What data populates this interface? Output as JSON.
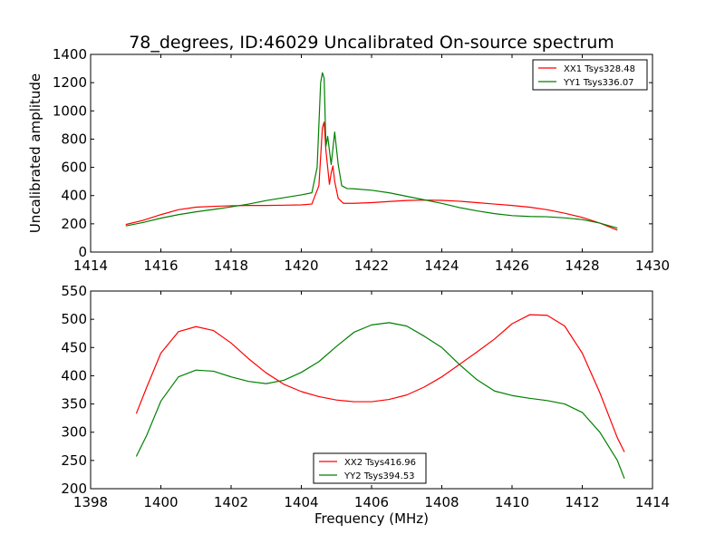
{
  "figure_title": "78_degrees, ID:46029 Uncalibrated On-source spectrum",
  "colors": {
    "xx": "#ff0000",
    "yy": "#008000"
  },
  "chart_data": [
    {
      "type": "line",
      "title": "78_degrees, ID:46029 Uncalibrated On-source spectrum",
      "xlabel": "",
      "ylabel": "Uncalibrated amplitude",
      "xlim": [
        1414,
        1430
      ],
      "ylim": [
        0,
        1400
      ],
      "xticks": [
        1414,
        1416,
        1418,
        1420,
        1422,
        1424,
        1426,
        1428,
        1430
      ],
      "yticks": [
        0,
        200,
        400,
        600,
        800,
        1000,
        1200,
        1400
      ],
      "legend_position": "top-right",
      "grid": false,
      "series": [
        {
          "name": "XX1 Tsys328.48",
          "color": "#ff0000",
          "points": [
            [
              1415.0,
              195
            ],
            [
              1415.5,
              225
            ],
            [
              1416.0,
              265
            ],
            [
              1416.5,
              300
            ],
            [
              1417.0,
              318
            ],
            [
              1417.5,
              324
            ],
            [
              1418.0,
              328
            ],
            [
              1418.5,
              330
            ],
            [
              1419.0,
              330
            ],
            [
              1419.5,
              332
            ],
            [
              1420.0,
              334
            ],
            [
              1420.3,
              340
            ],
            [
              1420.5,
              470
            ],
            [
              1420.6,
              880
            ],
            [
              1420.65,
              920
            ],
            [
              1420.7,
              720
            ],
            [
              1420.8,
              480
            ],
            [
              1420.85,
              560
            ],
            [
              1420.9,
              610
            ],
            [
              1420.95,
              500
            ],
            [
              1421.05,
              380
            ],
            [
              1421.2,
              345
            ],
            [
              1421.5,
              345
            ],
            [
              1422.0,
              350
            ],
            [
              1422.5,
              358
            ],
            [
              1423.0,
              365
            ],
            [
              1423.5,
              368
            ],
            [
              1424.0,
              366
            ],
            [
              1424.5,
              360
            ],
            [
              1425.0,
              350
            ],
            [
              1425.5,
              340
            ],
            [
              1426.0,
              330
            ],
            [
              1426.5,
              318
            ],
            [
              1427.0,
              300
            ],
            [
              1427.5,
              275
            ],
            [
              1428.0,
              245
            ],
            [
              1428.5,
              205
            ],
            [
              1429.0,
              155
            ]
          ]
        },
        {
          "name": "YY1 Tsys336.07",
          "color": "#008000",
          "points": [
            [
              1415.0,
              185
            ],
            [
              1415.5,
              210
            ],
            [
              1416.0,
              240
            ],
            [
              1416.5,
              265
            ],
            [
              1417.0,
              285
            ],
            [
              1417.5,
              302
            ],
            [
              1418.0,
              320
            ],
            [
              1418.5,
              340
            ],
            [
              1419.0,
              365
            ],
            [
              1419.5,
              385
            ],
            [
              1420.0,
              405
            ],
            [
              1420.3,
              420
            ],
            [
              1420.45,
              600
            ],
            [
              1420.55,
              1200
            ],
            [
              1420.6,
              1270
            ],
            [
              1420.65,
              1230
            ],
            [
              1420.7,
              750
            ],
            [
              1420.75,
              820
            ],
            [
              1420.85,
              620
            ],
            [
              1420.95,
              850
            ],
            [
              1421.05,
              620
            ],
            [
              1421.15,
              470
            ],
            [
              1421.3,
              450
            ],
            [
              1421.5,
              448
            ],
            [
              1422.0,
              438
            ],
            [
              1422.5,
              420
            ],
            [
              1423.0,
              395
            ],
            [
              1423.5,
              370
            ],
            [
              1424.0,
              345
            ],
            [
              1424.5,
              315
            ],
            [
              1425.0,
              292
            ],
            [
              1425.5,
              272
            ],
            [
              1426.0,
              258
            ],
            [
              1426.5,
              252
            ],
            [
              1427.0,
              250
            ],
            [
              1427.5,
              242
            ],
            [
              1428.0,
              230
            ],
            [
              1428.5,
              205
            ],
            [
              1429.0,
              170
            ]
          ]
        }
      ]
    },
    {
      "type": "line",
      "title": "",
      "xlabel": "Frequency (MHz)",
      "ylabel": "",
      "xlim": [
        1398,
        1414
      ],
      "ylim": [
        200,
        550
      ],
      "xticks": [
        1398,
        1400,
        1402,
        1404,
        1406,
        1408,
        1410,
        1412,
        1414
      ],
      "yticks": [
        200,
        250,
        300,
        350,
        400,
        450,
        500,
        550
      ],
      "legend_position": "bottom-center",
      "grid": false,
      "series": [
        {
          "name": "XX2 Tsys416.96",
          "color": "#ff0000",
          "points": [
            [
              1399.3,
              333
            ],
            [
              1399.6,
              380
            ],
            [
              1400.0,
              440
            ],
            [
              1400.5,
              478
            ],
            [
              1401.0,
              487
            ],
            [
              1401.5,
              480
            ],
            [
              1402.0,
              458
            ],
            [
              1402.5,
              430
            ],
            [
              1403.0,
              405
            ],
            [
              1403.5,
              385
            ],
            [
              1404.0,
              372
            ],
            [
              1404.5,
              363
            ],
            [
              1405.0,
              357
            ],
            [
              1405.5,
              354
            ],
            [
              1406.0,
              354
            ],
            [
              1406.5,
              358
            ],
            [
              1407.0,
              366
            ],
            [
              1407.5,
              380
            ],
            [
              1408.0,
              398
            ],
            [
              1408.5,
              420
            ],
            [
              1409.0,
              442
            ],
            [
              1409.5,
              465
            ],
            [
              1410.0,
              492
            ],
            [
              1410.5,
              508
            ],
            [
              1411.0,
              507
            ],
            [
              1411.5,
              488
            ],
            [
              1412.0,
              440
            ],
            [
              1412.5,
              370
            ],
            [
              1413.0,
              290
            ],
            [
              1413.2,
              265
            ]
          ]
        },
        {
          "name": "YY2 Tsys394.53",
          "color": "#008000",
          "points": [
            [
              1399.3,
              257
            ],
            [
              1399.6,
              295
            ],
            [
              1400.0,
              355
            ],
            [
              1400.5,
              398
            ],
            [
              1401.0,
              410
            ],
            [
              1401.5,
              408
            ],
            [
              1402.0,
              398
            ],
            [
              1402.5,
              390
            ],
            [
              1403.0,
              386
            ],
            [
              1403.5,
              392
            ],
            [
              1404.0,
              406
            ],
            [
              1404.5,
              425
            ],
            [
              1405.0,
              452
            ],
            [
              1405.5,
              477
            ],
            [
              1406.0,
              490
            ],
            [
              1406.5,
              494
            ],
            [
              1407.0,
              488
            ],
            [
              1407.5,
              470
            ],
            [
              1408.0,
              450
            ],
            [
              1408.5,
              420
            ],
            [
              1409.0,
              393
            ],
            [
              1409.5,
              373
            ],
            [
              1410.0,
              365
            ],
            [
              1410.5,
              360
            ],
            [
              1411.0,
              356
            ],
            [
              1411.5,
              350
            ],
            [
              1412.0,
              335
            ],
            [
              1412.5,
              300
            ],
            [
              1413.0,
              250
            ],
            [
              1413.2,
              218
            ]
          ]
        }
      ]
    }
  ]
}
